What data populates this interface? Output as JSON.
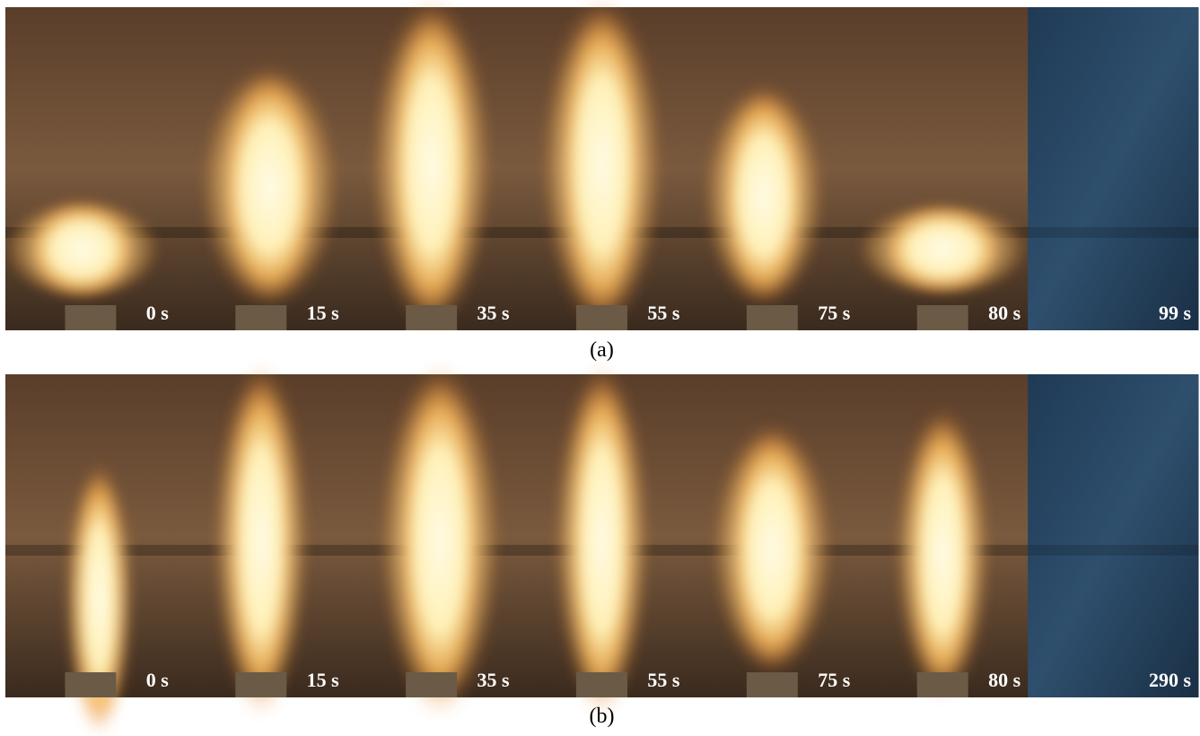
{
  "panels": [
    {
      "caption": "(a)",
      "frames": [
        "0 s",
        "15 s",
        "35 s",
        "55 s",
        "75 s",
        "80 s",
        "99 s"
      ]
    },
    {
      "caption": "(b)",
      "frames": [
        "0 s",
        "15 s",
        "35 s",
        "55 s",
        "75 s",
        "80 s",
        "290 s"
      ]
    }
  ]
}
